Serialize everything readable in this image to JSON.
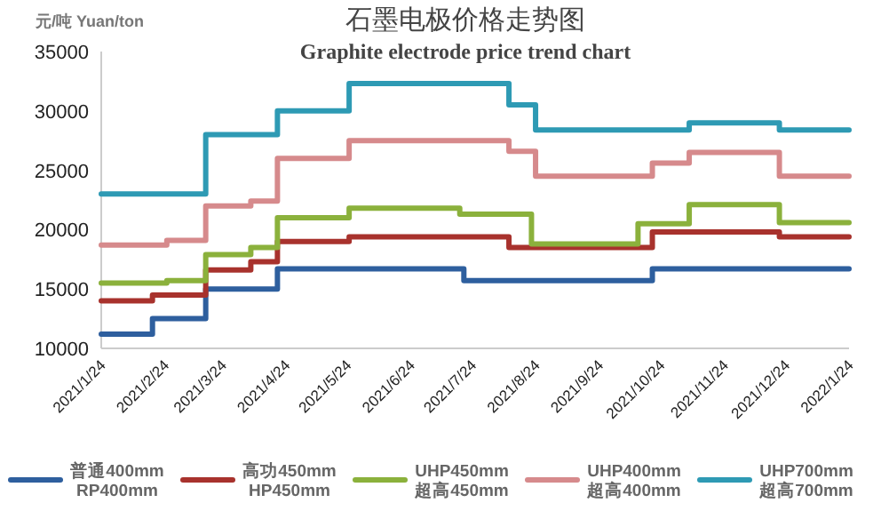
{
  "chart_data": {
    "type": "step",
    "title": "石墨电极价格走势图",
    "subtitle": "Graphite electrode price trend chart",
    "ylabel": "元/吨 Yuan/ton",
    "xlim": [
      "2021-01-24",
      "2022-01-24"
    ],
    "xticks": [
      {
        "value": "2021-01-24",
        "label": "2021/1/24"
      },
      {
        "value": "2021-02-24",
        "label": "2021/2/24"
      },
      {
        "value": "2021-03-24",
        "label": "2021/3/24"
      },
      {
        "value": "2021-04-24",
        "label": "2021/4/24"
      },
      {
        "value": "2021-05-24",
        "label": "2021/5/24"
      },
      {
        "value": "2021-06-24",
        "label": "2021/6/24"
      },
      {
        "value": "2021-07-24",
        "label": "2021/7/24"
      },
      {
        "value": "2021-08-24",
        "label": "2021/8/24"
      },
      {
        "value": "2021-09-24",
        "label": "2021/9/24"
      },
      {
        "value": "2021-10-24",
        "label": "2021/10/24"
      },
      {
        "value": "2021-11-24",
        "label": "2021/11/24"
      },
      {
        "value": "2021-12-24",
        "label": "2021/12/24"
      },
      {
        "value": "2022-01-24",
        "label": "2022/1/24"
      }
    ],
    "ylim": [
      10000,
      35000
    ],
    "yticks": [
      10000,
      15000,
      20000,
      25000,
      30000,
      35000
    ],
    "grid": false,
    "legend": "bottom",
    "series": [
      {
        "name": "普通400mm\nRP400mm",
        "color": "#2e5f9e",
        "x": [
          "2021-01-24",
          "2021-02-18",
          "2021-03-16",
          "2021-04-20",
          "2021-07-20",
          "2021-10-20",
          "2022-01-24"
        ],
        "values": [
          11200,
          12500,
          15000,
          16700,
          15700,
          16700,
          16700
        ]
      },
      {
        "name": "高功450mm\nHP450mm",
        "color": "#a8322d",
        "x": [
          "2021-01-24",
          "2021-02-18",
          "2021-03-16",
          "2021-04-07",
          "2021-04-20",
          "2021-05-25",
          "2021-08-11",
          "2021-10-20",
          "2021-12-21",
          "2022-01-24"
        ],
        "values": [
          14000,
          14500,
          16600,
          17300,
          19000,
          19400,
          18500,
          19800,
          19400,
          19400
        ]
      },
      {
        "name": "UHP450mm\n超高450mm",
        "color": "#8bb13c",
        "x": [
          "2021-01-24",
          "2021-02-25",
          "2021-03-16",
          "2021-04-07",
          "2021-04-20",
          "2021-05-25",
          "2021-07-18",
          "2021-08-22",
          "2021-10-13",
          "2021-11-07",
          "2021-12-21",
          "2022-01-24"
        ],
        "values": [
          15500,
          15700,
          17900,
          18500,
          21000,
          21800,
          21300,
          18800,
          20500,
          22100,
          20600,
          20600
        ]
      },
      {
        "name": "UHP400mm\n超高400mm",
        "color": "#d68a8c",
        "x": [
          "2021-01-24",
          "2021-02-25",
          "2021-03-16",
          "2021-04-07",
          "2021-04-20",
          "2021-05-25",
          "2021-08-11",
          "2021-08-24",
          "2021-10-20",
          "2021-11-07",
          "2021-12-21",
          "2022-01-24"
        ],
        "values": [
          18700,
          19100,
          22000,
          22400,
          26000,
          27500,
          26600,
          24500,
          25600,
          26500,
          24500,
          24500
        ]
      },
      {
        "name": "UHP700mm\n超高700mm",
        "color": "#2e9ab4",
        "x": [
          "2021-01-24",
          "2021-03-16",
          "2021-04-20",
          "2021-05-25",
          "2021-08-11",
          "2021-08-24",
          "2021-11-07",
          "2021-12-21",
          "2022-01-24"
        ],
        "values": [
          23000,
          28000,
          30000,
          32300,
          30500,
          28400,
          29000,
          28400,
          28400
        ]
      }
    ]
  }
}
